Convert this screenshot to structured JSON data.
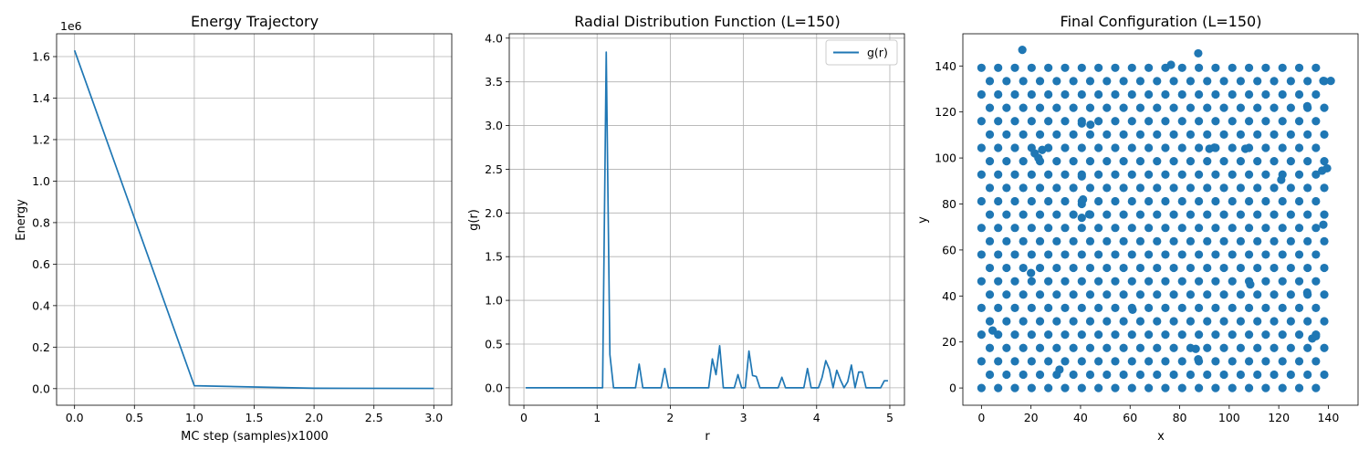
{
  "chart_data": [
    {
      "type": "line",
      "title": "Energy Trajectory",
      "xlabel": "MC step (samples)x1000",
      "ylabel": "Energy",
      "offset_label": "1e6",
      "grid": true,
      "xlim": [
        -0.15,
        3.15
      ],
      "ylim": [
        -0.08,
        1.71
      ],
      "xticks": [
        0.0,
        0.5,
        1.0,
        1.5,
        2.0,
        2.5,
        3.0
      ],
      "xtick_labels": [
        "0.0",
        "0.5",
        "1.0",
        "1.5",
        "2.0",
        "2.5",
        "3.0"
      ],
      "yticks": [
        0.0,
        0.2,
        0.4,
        0.6,
        0.8,
        1.0,
        1.2,
        1.4,
        1.6
      ],
      "ytick_labels": [
        "0.0",
        "0.2",
        "0.4",
        "0.6",
        "0.8",
        "1.0",
        "1.2",
        "1.4",
        "1.6"
      ],
      "series": [
        {
          "color": "#1f77b4",
          "x": [
            0,
            1,
            2,
            3
          ],
          "y": [
            1.63,
            0.014,
            0.002,
            0.001
          ]
        }
      ]
    },
    {
      "type": "line",
      "title": "Radial Distribution Function (L=150)",
      "xlabel": "r",
      "ylabel": "g(r)",
      "grid": true,
      "legend": "top-right",
      "xlim": [
        -0.2,
        5.2
      ],
      "ylim": [
        -0.2,
        4.05
      ],
      "xticks": [
        0,
        1,
        2,
        3,
        4,
        5
      ],
      "xtick_labels": [
        "0",
        "1",
        "2",
        "3",
        "4",
        "5"
      ],
      "yticks": [
        0.0,
        0.5,
        1.0,
        1.5,
        2.0,
        2.5,
        3.0,
        3.5,
        4.0
      ],
      "ytick_labels": [
        "0.0",
        "0.5",
        "1.0",
        "1.5",
        "2.0",
        "2.5",
        "3.0",
        "3.5",
        "4.0"
      ],
      "series": [
        {
          "name": "g(r)",
          "color": "#1f77b4",
          "x": [
            0.025,
            1.075,
            1.125,
            1.175,
            1.225,
            1.525,
            1.575,
            1.625,
            1.875,
            1.925,
            1.975,
            2.525,
            2.575,
            2.625,
            2.675,
            2.725,
            2.875,
            2.925,
            2.975,
            3.025,
            3.075,
            3.125,
            3.175,
            3.225,
            3.475,
            3.525,
            3.575,
            3.825,
            3.875,
            3.925,
            4.025,
            4.075,
            4.125,
            4.175,
            4.225,
            4.275,
            4.325,
            4.375,
            4.425,
            4.475,
            4.525,
            4.575,
            4.625,
            4.675,
            4.725,
            4.875,
            4.925,
            4.975
          ],
          "y": [
            0,
            0,
            3.84,
            0.38,
            0,
            0,
            0.27,
            0,
            0,
            0.22,
            0,
            0,
            0.33,
            0.15,
            0.48,
            0,
            0,
            0.15,
            0,
            0,
            0.42,
            0.14,
            0.13,
            0,
            0,
            0.12,
            0,
            0,
            0.22,
            0,
            0,
            0.12,
            0.31,
            0.21,
            0,
            0.2,
            0.09,
            0,
            0.07,
            0.26,
            0,
            0.18,
            0.18,
            0,
            0,
            0,
            0.08,
            0.08
          ]
        }
      ]
    },
    {
      "type": "scatter",
      "title": "Final Configuration (L=150)",
      "xlabel": "x",
      "ylabel": "y",
      "grid": false,
      "xlim": [
        -7.5,
        152
      ],
      "ylim": [
        -7.5,
        154
      ],
      "xticks": [
        0,
        20,
        40,
        60,
        80,
        100,
        120,
        140
      ],
      "xtick_labels": [
        "0",
        "20",
        "40",
        "60",
        "80",
        "100",
        "120",
        "140"
      ],
      "yticks": [
        0,
        20,
        40,
        60,
        80,
        100,
        120,
        140
      ],
      "ytick_labels": [
        "0",
        "20",
        "40",
        "60",
        "80",
        "100",
        "120",
        "140"
      ],
      "color": "#1f77b4",
      "lattice": {
        "rows": 25,
        "cols": 21,
        "dx": 6.75,
        "dy": 5.8,
        "row_offset": 3.375,
        "x0": 0,
        "y0": 0
      },
      "extra_points": [
        [
          16.5,
          147
        ],
        [
          87.5,
          145.5
        ],
        [
          76.5,
          140.5
        ],
        [
          44,
          114.5
        ],
        [
          40.5,
          115
        ],
        [
          21.5,
          102
        ],
        [
          24.5,
          103.5
        ],
        [
          23,
          100
        ],
        [
          92,
          104
        ],
        [
          94,
          104.5
        ],
        [
          106.5,
          104
        ],
        [
          121,
          90.5
        ],
        [
          137.5,
          94.5
        ],
        [
          139.5,
          95.5
        ],
        [
          131.5,
          122.5
        ],
        [
          138,
          133.5
        ],
        [
          141,
          133.5
        ],
        [
          40.5,
          92
        ],
        [
          40.5,
          80
        ],
        [
          41,
          82
        ],
        [
          40.5,
          74
        ],
        [
          43.5,
          75.5
        ],
        [
          138,
          71
        ],
        [
          20,
          50
        ],
        [
          108.5,
          45
        ],
        [
          131.5,
          41.5
        ],
        [
          61,
          34
        ],
        [
          4.5,
          25
        ],
        [
          31.5,
          8
        ],
        [
          86.5,
          17
        ],
        [
          87.5,
          12.5
        ],
        [
          133.5,
          21.5
        ],
        [
          135,
          22.5
        ]
      ]
    }
  ]
}
